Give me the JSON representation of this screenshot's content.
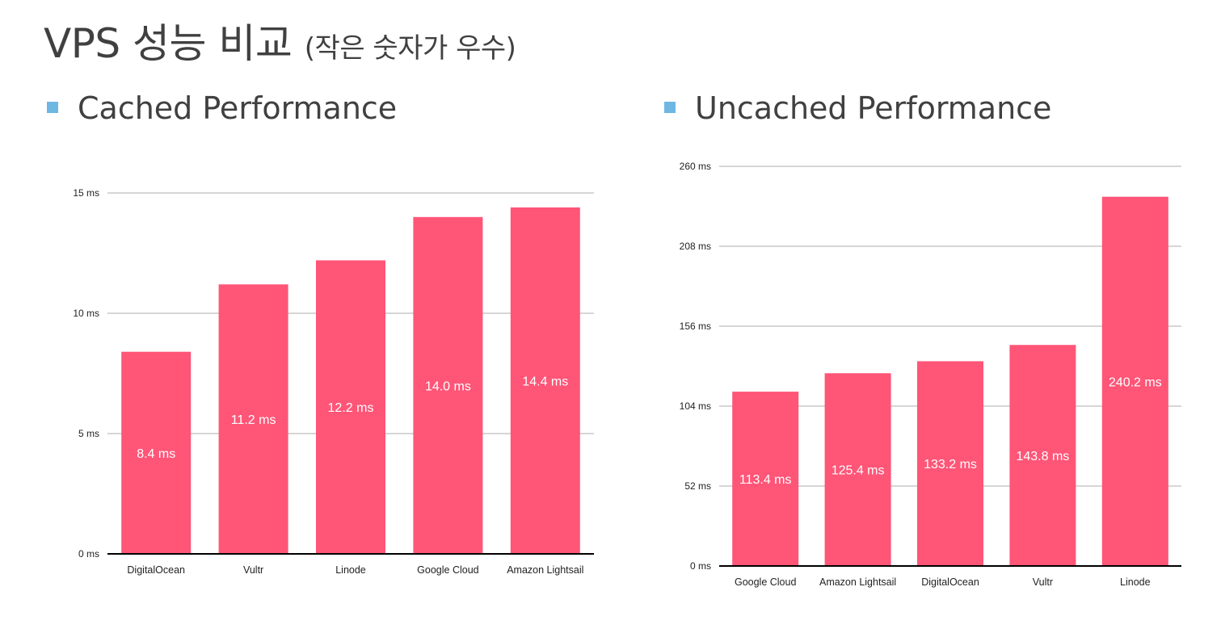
{
  "slide": {
    "title_main": "VPS 성능 비교",
    "title_sub": "(작은 숫자가 우수)"
  },
  "bullets": {
    "left": "Cached Performance",
    "right": "Uncached Performance"
  },
  "colors": {
    "bar": "#ff5577",
    "grid": "#c8c8c8",
    "axis": "#000000",
    "bullet_marker": "#6fb7e3"
  },
  "chart_data": [
    {
      "type": "bar",
      "title": "",
      "categories": [
        "DigitalOcean",
        "Vultr",
        "Linode",
        "Google Cloud",
        "Amazon Lightsail"
      ],
      "values": [
        8.4,
        11.2,
        12.2,
        14.0,
        14.4
      ],
      "data_labels": [
        "8.4 ms",
        "11.2 ms",
        "12.2 ms",
        "14.0 ms",
        "14.4 ms"
      ],
      "yticks": [
        0,
        5,
        10,
        15
      ],
      "ytick_labels": [
        "0 ms",
        "5 ms",
        "10 ms",
        "15 ms"
      ],
      "ylim": [
        0,
        15
      ],
      "grid": true,
      "xlabel": "",
      "ylabel": ""
    },
    {
      "type": "bar",
      "title": "",
      "categories": [
        "Google Cloud",
        "Amazon Lightsail",
        "DigitalOcean",
        "Vultr",
        "Linode"
      ],
      "values": [
        113.4,
        125.4,
        133.2,
        143.8,
        240.2
      ],
      "data_labels": [
        "113.4 ms",
        "125.4 ms",
        "133.2 ms",
        "143.8 ms",
        "240.2 ms"
      ],
      "yticks": [
        0,
        52,
        104,
        156,
        208,
        260
      ],
      "ytick_labels": [
        "0 ms",
        "52 ms",
        "104 ms",
        "156 ms",
        "208 ms",
        "260 ms"
      ],
      "ylim": [
        0,
        260
      ],
      "grid": true,
      "xlabel": "",
      "ylabel": ""
    }
  ]
}
